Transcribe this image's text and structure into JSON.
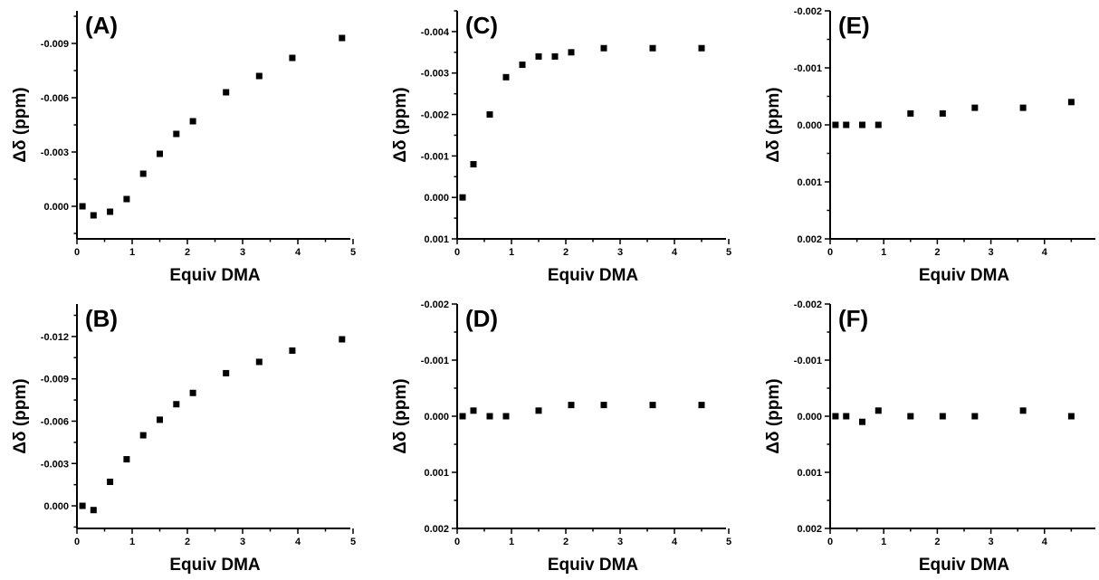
{
  "chart_data": [
    {
      "type": "scatter",
      "panel_label": "(A)",
      "xlabel": "Equiv DMA",
      "ylabel": "Δδ (ppm)",
      "xlim": [
        0,
        5
      ],
      "ylim": [
        0.0018,
        -0.0108
      ],
      "y_inverted": true,
      "xticks": [
        0,
        1,
        2,
        3,
        4,
        5
      ],
      "xtick_labels": [
        "0",
        "1",
        "2",
        "3",
        "4",
        "5"
      ],
      "yticks": [
        0,
        -0.003,
        -0.006,
        -0.009
      ],
      "ytick_labels": [
        "0.000",
        "-0.003",
        "-0.006",
        "-0.009"
      ],
      "x": [
        0.1,
        0.3,
        0.6,
        0.9,
        1.2,
        1.5,
        1.8,
        2.1,
        2.7,
        3.3,
        3.9,
        4.8
      ],
      "y": [
        0.0,
        0.0005,
        0.0003,
        -0.0004,
        -0.0018,
        -0.0029,
        -0.004,
        -0.0047,
        -0.0063,
        -0.0072,
        -0.0082,
        -0.0093
      ]
    },
    {
      "type": "scatter",
      "panel_label": "(B)",
      "xlabel": "Equiv DMA",
      "ylabel": "Δδ (ppm)",
      "xlim": [
        0,
        5
      ],
      "ylim": [
        0.0016,
        -0.0143
      ],
      "y_inverted": true,
      "xticks": [
        0,
        1,
        2,
        3,
        4,
        5
      ],
      "xtick_labels": [
        "0",
        "1",
        "2",
        "3",
        "4",
        "5"
      ],
      "yticks": [
        0,
        -0.003,
        -0.006,
        -0.009,
        -0.012
      ],
      "ytick_labels": [
        "0.000",
        "-0.003",
        "-0.006",
        "-0.009",
        "-0.012"
      ],
      "x": [
        0.1,
        0.3,
        0.6,
        0.9,
        1.2,
        1.5,
        1.8,
        2.1,
        2.7,
        3.3,
        3.9,
        4.8
      ],
      "y": [
        0.0,
        0.0003,
        -0.0017,
        -0.0033,
        -0.005,
        -0.0061,
        -0.0072,
        -0.008,
        -0.0094,
        -0.0102,
        -0.011,
        -0.0118
      ]
    },
    {
      "type": "scatter",
      "panel_label": "(C)",
      "xlabel": "Equiv DMA",
      "ylabel": "Δδ (ppm)",
      "xlim": [
        0,
        5
      ],
      "ylim": [
        0.001,
        -0.0045
      ],
      "y_inverted": true,
      "xticks": [
        0,
        1,
        2,
        3,
        4,
        5
      ],
      "xtick_labels": [
        "0",
        "1",
        "2",
        "3",
        "4",
        "5"
      ],
      "yticks": [
        0.001,
        0,
        -0.001,
        -0.002,
        -0.003,
        -0.004
      ],
      "ytick_labels": [
        "0.001",
        "0.000",
        "-0.001",
        "-0.002",
        "-0.003",
        "-0.004"
      ],
      "x": [
        0.1,
        0.3,
        0.6,
        0.9,
        1.2,
        1.5,
        1.8,
        2.1,
        2.7,
        3.6,
        4.5
      ],
      "y": [
        0.0,
        -0.0008,
        -0.002,
        -0.0029,
        -0.0032,
        -0.0034,
        -0.0034,
        -0.0035,
        -0.0036,
        -0.0036,
        -0.0036
      ]
    },
    {
      "type": "scatter",
      "panel_label": "(D)",
      "xlabel": "Equiv DMA",
      "ylabel": "Δδ (ppm)",
      "xlim": [
        0,
        5
      ],
      "ylim": [
        0.002,
        -0.002
      ],
      "y_inverted": true,
      "xticks": [
        0,
        1,
        2,
        3,
        4,
        5
      ],
      "xtick_labels": [
        "0",
        "1",
        "2",
        "3",
        "4",
        "5"
      ],
      "yticks": [
        0.002,
        0.001,
        0,
        -0.001,
        -0.002
      ],
      "ytick_labels": [
        "0.002",
        "0.001",
        "0.000",
        "-0.001",
        "-0.002"
      ],
      "x": [
        0.1,
        0.3,
        0.6,
        0.9,
        1.5,
        2.1,
        2.7,
        3.6,
        4.5
      ],
      "y": [
        0.0,
        -0.0001,
        0.0,
        0.0,
        -0.0001,
        -0.0002,
        -0.0002,
        -0.0002,
        -0.0002
      ]
    },
    {
      "type": "scatter",
      "panel_label": "(E)",
      "xlabel": "Equiv DMA",
      "ylabel": "Δδ (ppm)",
      "xlim": [
        0,
        5
      ],
      "ylim": [
        0.002,
        -0.002
      ],
      "y_inverted": true,
      "xticks": [
        0,
        1,
        2,
        3,
        4
      ],
      "xtick_labels": [
        "0",
        "1",
        "2",
        "3",
        "4"
      ],
      "yticks": [
        0.002,
        0.001,
        0,
        -0.001,
        -0.002
      ],
      "ytick_labels": [
        "0.002",
        "0.001",
        "0.000",
        "-0.001",
        "-0.002"
      ],
      "x": [
        0.1,
        0.3,
        0.6,
        0.9,
        1.5,
        2.1,
        2.7,
        3.6,
        4.5
      ],
      "y": [
        0.0,
        0.0,
        0.0,
        0.0,
        -0.0002,
        -0.0002,
        -0.0003,
        -0.0003,
        -0.0004
      ]
    },
    {
      "type": "scatter",
      "panel_label": "(F)",
      "xlabel": "Equiv DMA",
      "ylabel": "Δδ (ppm)",
      "xlim": [
        0,
        5
      ],
      "ylim": [
        0.002,
        -0.002
      ],
      "y_inverted": true,
      "xticks": [
        0,
        1,
        2,
        3,
        4
      ],
      "xtick_labels": [
        "0",
        "1",
        "2",
        "3",
        "4"
      ],
      "yticks": [
        0.002,
        0.001,
        0,
        -0.001,
        -0.002
      ],
      "ytick_labels": [
        "0.002",
        "0.001",
        "0.000",
        "-0.001",
        "-0.002"
      ],
      "x": [
        0.1,
        0.3,
        0.6,
        0.9,
        1.5,
        2.1,
        2.7,
        3.6,
        4.5
      ],
      "y": [
        0.0,
        0.0,
        0.0001,
        -0.0001,
        0.0,
        0.0,
        0.0,
        -0.0001,
        0.0
      ]
    }
  ]
}
